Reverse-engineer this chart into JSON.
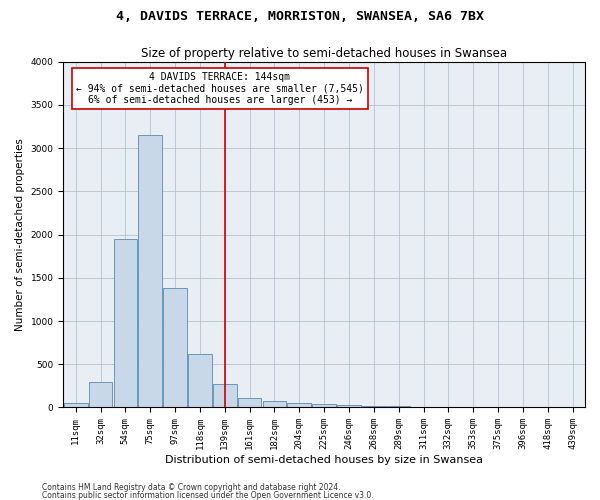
{
  "title": "4, DAVIDS TERRACE, MORRISTON, SWANSEA, SA6 7BX",
  "subtitle": "Size of property relative to semi-detached houses in Swansea",
  "xlabel": "Distribution of semi-detached houses by size in Swansea",
  "ylabel": "Number of semi-detached properties",
  "footer1": "Contains HM Land Registry data © Crown copyright and database right 2024.",
  "footer2": "Contains public sector information licensed under the Open Government Licence v3.0.",
  "annotation_title": "4 DAVIDS TERRACE: 144sqm",
  "annotation_line1": "← 94% of semi-detached houses are smaller (7,545)",
  "annotation_line2": "6% of semi-detached houses are larger (453) →",
  "bar_color": "#c8d8e8",
  "bar_edge_color": "#5a8ab0",
  "vline_color": "#cc0000",
  "annotation_box_color": "#ffffff",
  "annotation_box_edge": "#cc0000",
  "background_color": "#e8eef4",
  "categories": [
    "11sqm",
    "32sqm",
    "54sqm",
    "75sqm",
    "97sqm",
    "118sqm",
    "139sqm",
    "161sqm",
    "182sqm",
    "204sqm",
    "225sqm",
    "246sqm",
    "268sqm",
    "289sqm",
    "311sqm",
    "332sqm",
    "353sqm",
    "375sqm",
    "396sqm",
    "418sqm",
    "439sqm"
  ],
  "values": [
    50,
    300,
    1950,
    3150,
    1380,
    620,
    270,
    110,
    75,
    55,
    40,
    30,
    20,
    15,
    8,
    5,
    4,
    3,
    2,
    2,
    1
  ],
  "ylim": [
    0,
    4000
  ],
  "yticks": [
    0,
    500,
    1000,
    1500,
    2000,
    2500,
    3000,
    3500,
    4000
  ],
  "vline_position": 6.0,
  "title_fontsize": 9.5,
  "subtitle_fontsize": 8.5,
  "xlabel_fontsize": 8,
  "ylabel_fontsize": 7.5,
  "tick_fontsize": 6.5,
  "annotation_fontsize": 7,
  "footer_fontsize": 5.5
}
